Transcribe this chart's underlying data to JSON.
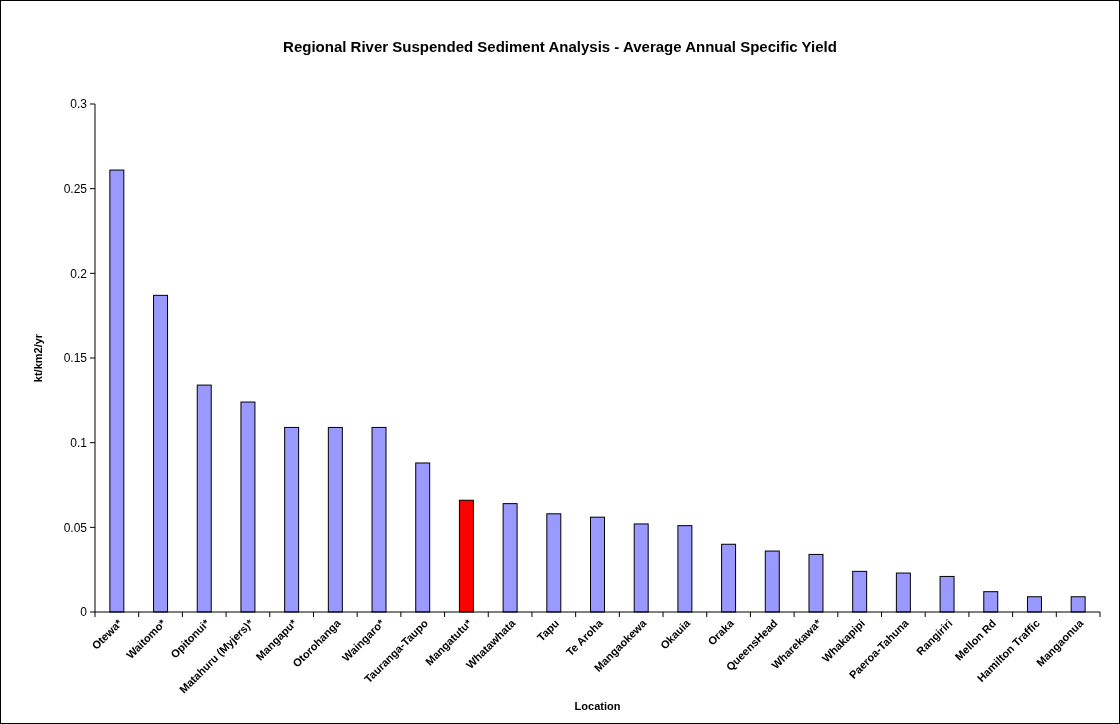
{
  "chart_data": {
    "type": "bar",
    "title": "Regional River Suspended Sediment Analysis - Average Annual Specific Yield",
    "xlabel": "Location",
    "ylabel": "kt/km2/yr",
    "categories": [
      "Otewa*",
      "Waitomo*",
      "Opitonui*",
      "Matahuru (Myjers)*",
      "Mangapu*",
      "Otorohanga",
      "Waingaro*",
      "Tauranga-Taupo",
      "Mangatutu*",
      "Whatawhata",
      "Tapu",
      "Te Aroha",
      "Mangaokewa",
      "Okauia",
      "Oraka",
      "QueensHead",
      "Wharekawa*",
      "Whakapipi",
      "Paeroa-Tahuna",
      "Rangiriri",
      "Mellon Rd",
      "Hamilton Traffic",
      "Mangaonua"
    ],
    "values": [
      0.261,
      0.187,
      0.134,
      0.124,
      0.109,
      0.109,
      0.109,
      0.088,
      0.066,
      0.064,
      0.058,
      0.056,
      0.052,
      0.051,
      0.04,
      0.036,
      0.034,
      0.024,
      0.023,
      0.021,
      0.012,
      0.009,
      0.009
    ],
    "colors": [
      "#9999ff",
      "#9999ff",
      "#9999ff",
      "#9999ff",
      "#9999ff",
      "#9999ff",
      "#9999ff",
      "#9999ff",
      "#ff0000",
      "#9999ff",
      "#9999ff",
      "#9999ff",
      "#9999ff",
      "#9999ff",
      "#9999ff",
      "#9999ff",
      "#9999ff",
      "#9999ff",
      "#9999ff",
      "#9999ff",
      "#9999ff",
      "#9999ff",
      "#9999ff"
    ],
    "ylim": [
      0,
      0.3
    ],
    "yticks": [
      0,
      0.05,
      0.1,
      0.15,
      0.2,
      0.25,
      0.3
    ],
    "grid": false
  }
}
